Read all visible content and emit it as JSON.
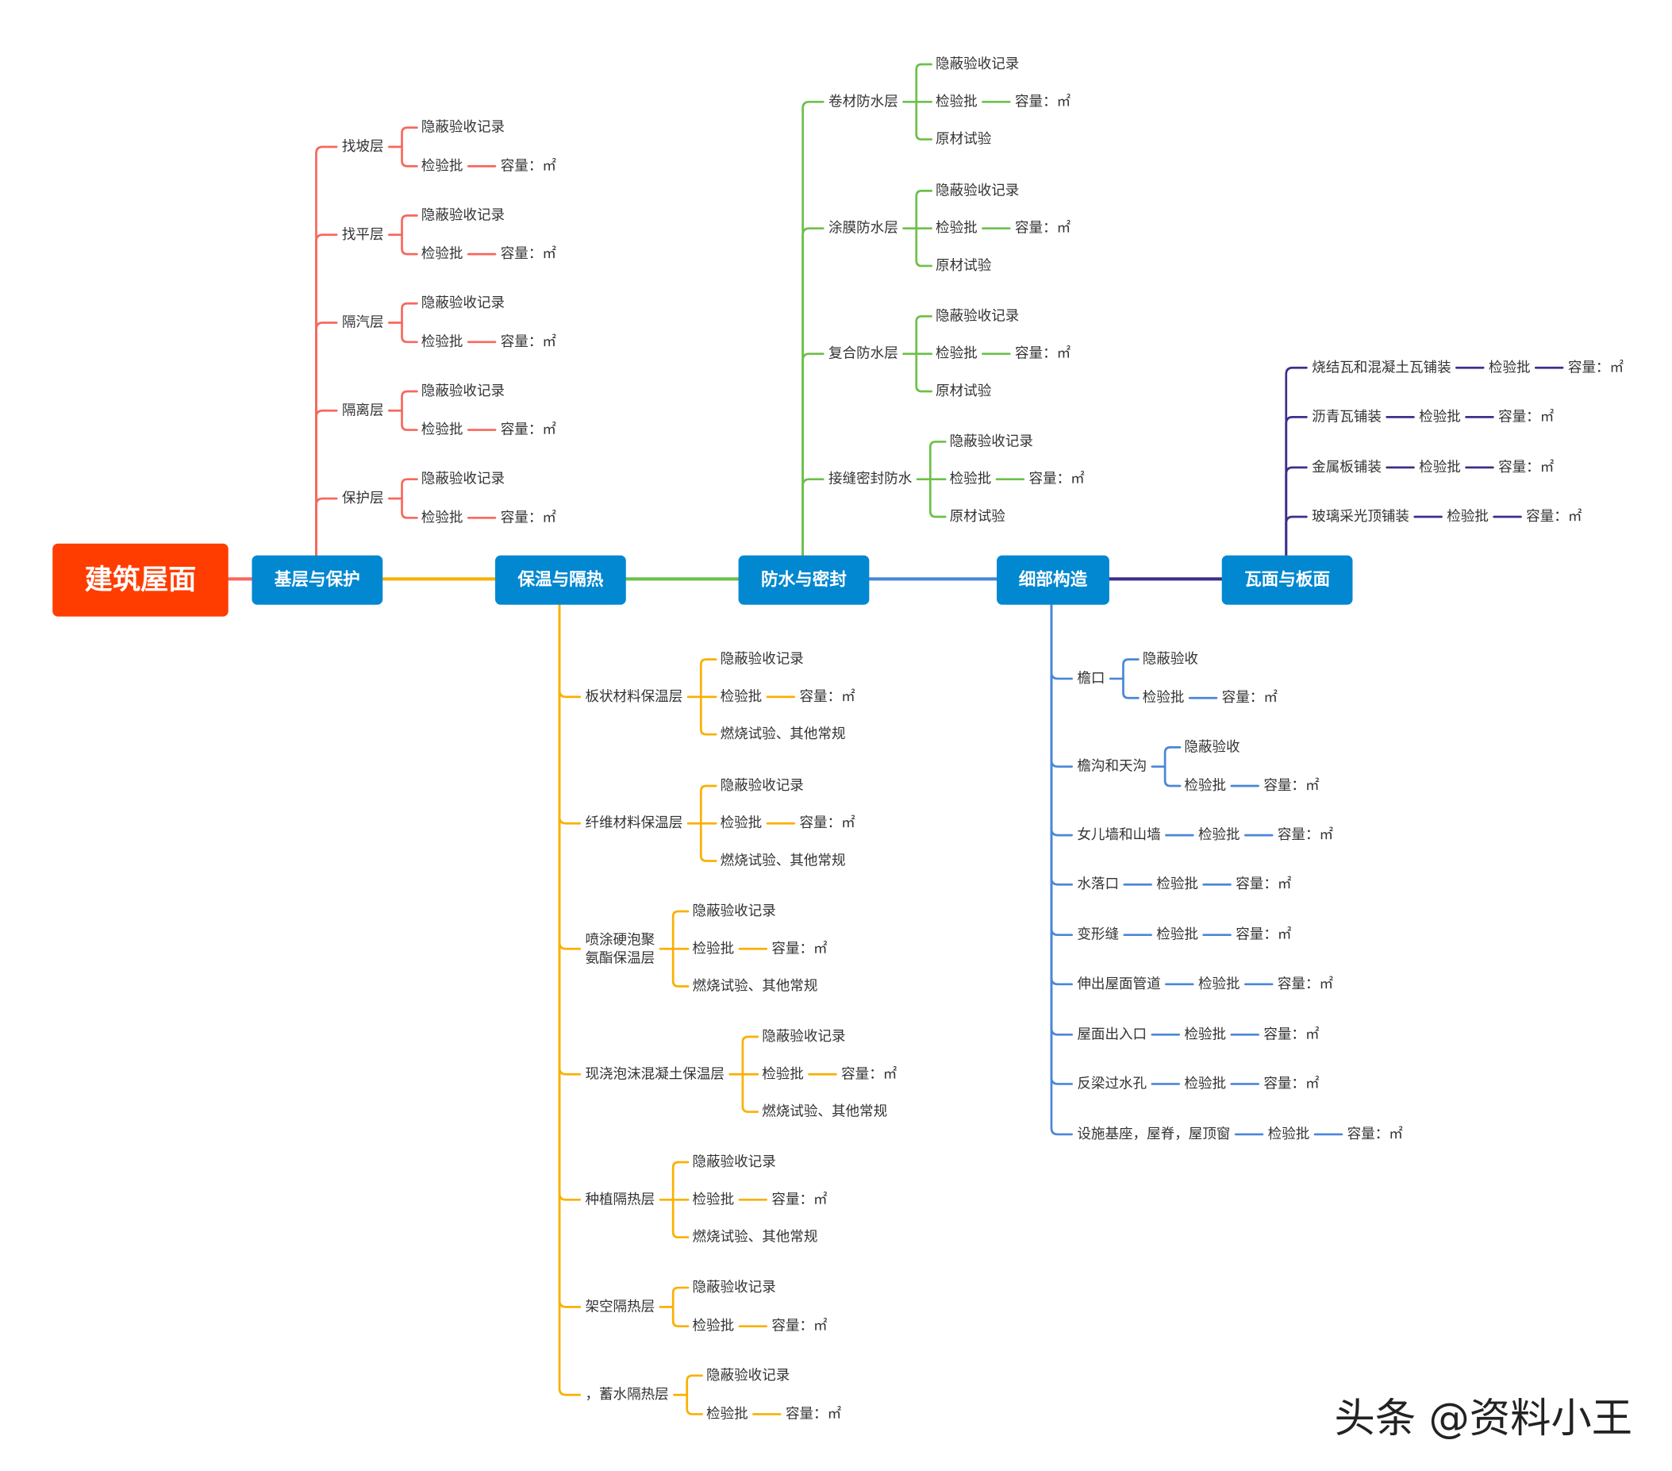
{
  "root": {
    "label": "建筑屋面",
    "color": "#ff3d00"
  },
  "node_color": "#0288d1",
  "branches": [
    {
      "label": "基层与保护",
      "color": "#f8675c",
      "children": [
        {
          "label": "找坡层",
          "items": [
            [
              "隐蔽验收记录"
            ],
            [
              "检验批",
              "容量：㎡"
            ]
          ]
        },
        {
          "label": "找平层",
          "items": [
            [
              "隐蔽验收记录"
            ],
            [
              "检验批",
              "容量：㎡"
            ]
          ]
        },
        {
          "label": "隔汽层",
          "items": [
            [
              "隐蔽验收记录"
            ],
            [
              "检验批",
              "容量：㎡"
            ]
          ]
        },
        {
          "label": "隔离层",
          "items": [
            [
              "隐蔽验收记录"
            ],
            [
              "检验批",
              "容量：㎡"
            ]
          ]
        },
        {
          "label": "保护层",
          "items": [
            [
              "隐蔽验收记录"
            ],
            [
              "检验批",
              "容量：㎡"
            ]
          ]
        }
      ]
    },
    {
      "label": "保温与隔热",
      "color": "#f9b000",
      "children": [
        {
          "label": "板状材料保温层",
          "items": [
            [
              "隐蔽验收记录"
            ],
            [
              "检验批",
              "容量：㎡"
            ],
            [
              "燃烧试验、其他常规"
            ]
          ]
        },
        {
          "label": "纤维材料保温层",
          "items": [
            [
              "隐蔽验收记录"
            ],
            [
              "检验批",
              "容量：㎡"
            ],
            [
              "燃烧试验、其他常规"
            ]
          ]
        },
        {
          "label": [
            "喷涂硬泡聚",
            "氨酯保温层"
          ],
          "items": [
            [
              "隐蔽验收记录"
            ],
            [
              "检验批",
              "容量：㎡"
            ],
            [
              "燃烧试验、其他常规"
            ]
          ]
        },
        {
          "label": "现浇泡沫混凝土保温层",
          "items": [
            [
              "隐蔽验收记录"
            ],
            [
              "检验批",
              "容量：㎡"
            ],
            [
              "燃烧试验、其他常规"
            ]
          ]
        },
        {
          "label": "种植隔热层",
          "items": [
            [
              "隐蔽验收记录"
            ],
            [
              "检验批",
              "容量：㎡"
            ],
            [
              "燃烧试验、其他常规"
            ]
          ]
        },
        {
          "label": "架空隔热层",
          "items": [
            [
              "隐蔽验收记录"
            ],
            [
              "检验批",
              "容量：㎡"
            ]
          ]
        },
        {
          "label": "，蓄水隔热层",
          "items": [
            [
              "隐蔽验收记录"
            ],
            [
              "检验批",
              "容量：㎡"
            ]
          ]
        }
      ]
    },
    {
      "label": "防水与密封",
      "color": "#6cc04a",
      "children": [
        {
          "label": "卷材防水层",
          "items": [
            [
              "隐蔽验收记录"
            ],
            [
              "检验批",
              "容量：㎡"
            ],
            [
              "原材试验"
            ]
          ]
        },
        {
          "label": "涂膜防水层",
          "items": [
            [
              "隐蔽验收记录"
            ],
            [
              "检验批",
              "容量：㎡"
            ],
            [
              "原材试验"
            ]
          ]
        },
        {
          "label": "复合防水层",
          "items": [
            [
              "隐蔽验收记录"
            ],
            [
              "检验批",
              "容量：㎡"
            ],
            [
              "原材试验"
            ]
          ]
        },
        {
          "label": "接缝密封防水",
          "items": [
            [
              "隐蔽验收记录"
            ],
            [
              "检验批",
              "容量：㎡"
            ],
            [
              "原材试验"
            ]
          ]
        }
      ]
    },
    {
      "label": "细部构造",
      "color": "#4a86d8",
      "children": [
        {
          "label": "檐口",
          "items": [
            [
              "隐蔽验收"
            ],
            [
              "检验批",
              "容量：㎡"
            ]
          ]
        },
        {
          "label": "檐沟和天沟",
          "items": [
            [
              "隐蔽验收"
            ],
            [
              "检验批",
              "容量：㎡"
            ]
          ]
        },
        {
          "label": "女儿墙和山墙",
          "chain": [
            "检验批",
            "容量：㎡"
          ]
        },
        {
          "label": "水落口",
          "chain": [
            "检验批",
            "容量：㎡"
          ]
        },
        {
          "label": "变形缝",
          "chain": [
            "检验批",
            "容量：㎡"
          ]
        },
        {
          "label": "伸出屋面管道",
          "chain": [
            "检验批",
            "容量：㎡"
          ]
        },
        {
          "label": "屋面出入口",
          "chain": [
            "检验批",
            "容量：㎡"
          ]
        },
        {
          "label": "反梁过水孔",
          "chain": [
            "检验批",
            "容量：㎡"
          ]
        },
        {
          "label": "设施基座，屋脊，屋顶窗",
          "chain": [
            "检验批",
            "容量：㎡"
          ]
        }
      ]
    },
    {
      "label": "瓦面与板面",
      "color": "#3b2f8c",
      "children": [
        {
          "label": "烧结瓦和混凝土瓦铺装",
          "chain": [
            "检验批",
            "容量：㎡"
          ]
        },
        {
          "label": "沥青瓦铺装",
          "chain": [
            "检验批",
            "容量：㎡"
          ]
        },
        {
          "label": "金属板铺装",
          "chain": [
            "检验批",
            "容量：㎡"
          ]
        },
        {
          "label": "玻璃采光顶铺装",
          "chain": [
            "检验批",
            "容量：㎡"
          ]
        }
      ]
    }
  ],
  "watermark": "头条 @资料小王"
}
